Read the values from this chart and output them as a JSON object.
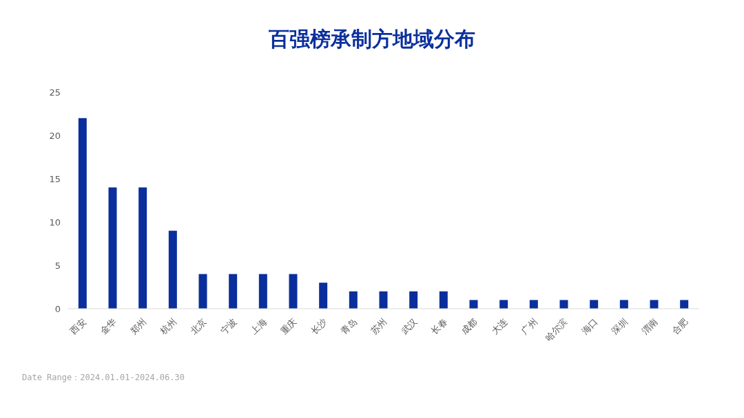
{
  "chart_data": {
    "type": "bar",
    "title": "百强榜承制方地域分布",
    "categories": [
      "西安",
      "金华",
      "郑州",
      "杭州",
      "北京",
      "宁波",
      "上海",
      "重庆",
      "长沙",
      "青岛",
      "苏州",
      "武汉",
      "长春",
      "成都",
      "大连",
      "广州",
      "哈尔滨",
      "海口",
      "深圳",
      "渭南",
      "合肥"
    ],
    "values": [
      22,
      14,
      14,
      9,
      4,
      4,
      4,
      4,
      3,
      2,
      2,
      2,
      2,
      1,
      1,
      1,
      1,
      1,
      1,
      1,
      1
    ],
    "color": "#0a2f9c",
    "ylim": [
      0,
      25
    ],
    "yticks": [
      0,
      5,
      10,
      15,
      20,
      25
    ],
    "grid": false,
    "annotations": [
      "Date Range：2024.01.01-2024.06.30"
    ]
  }
}
